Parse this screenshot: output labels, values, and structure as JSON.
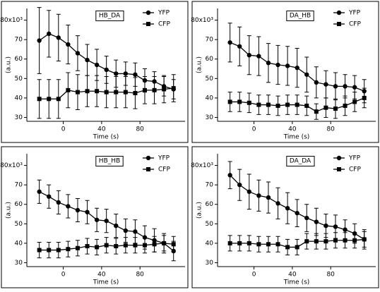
{
  "chart_data": [
    {
      "type": "line",
      "title": "HB_DA",
      "x_label": "Time (s)",
      "y_label": "(a.u.)",
      "x": [
        -25,
        -15,
        -5,
        5,
        15,
        25,
        35,
        45,
        55,
        65,
        75,
        85,
        95,
        105,
        115
      ],
      "xlim": [
        -38,
        127
      ],
      "xticks": [
        0,
        40,
        80
      ],
      "ylim": [
        28,
        86
      ],
      "yticks": [
        30,
        40,
        50,
        60,
        70,
        {
          "value": 80,
          "label": "80x10³"
        }
      ],
      "legend": "top-right",
      "series": [
        {
          "name": "YFP",
          "color": "#000000",
          "marker": "circle",
          "values": [
            69.5,
            73,
            71,
            67.5,
            63,
            59.5,
            57,
            54.5,
            52.5,
            52.5,
            52,
            49,
            48.5,
            46,
            44.5
          ],
          "errors": [
            17,
            12,
            12,
            10,
            9,
            8,
            8,
            7,
            7,
            6,
            6,
            6,
            5,
            5,
            5
          ]
        },
        {
          "name": "CFP",
          "color": "#000000",
          "marker": "square",
          "values": [
            39.5,
            39.5,
            39.5,
            44,
            43,
            43.5,
            43.5,
            43,
            43,
            43,
            42.5,
            44,
            44,
            44.5,
            45
          ],
          "errors": [
            10,
            10,
            10,
            9,
            9,
            8,
            8,
            8,
            8,
            8,
            8,
            7,
            7,
            7,
            7
          ]
        }
      ]
    },
    {
      "type": "line",
      "title": "DA_HB",
      "x_label": "Time (s)",
      "y_label": "(a.u.)",
      "x": [
        -25,
        -15,
        -5,
        5,
        15,
        25,
        35,
        45,
        55,
        65,
        75,
        85,
        95,
        105,
        115
      ],
      "xlim": [
        -38,
        127
      ],
      "xticks": [
        0,
        40,
        80
      ],
      "ylim": [
        28,
        86
      ],
      "yticks": [
        30,
        40,
        50,
        60,
        70,
        {
          "value": 80,
          "label": "80x10³"
        }
      ],
      "legend": "top-right",
      "series": [
        {
          "name": "YFP",
          "color": "#000000",
          "marker": "circle",
          "values": [
            68.5,
            66.5,
            62,
            61.5,
            58,
            57,
            56.5,
            55.5,
            52,
            48,
            47,
            46,
            46,
            45.5,
            43.5
          ],
          "errors": [
            10,
            10,
            10,
            10,
            10,
            10,
            10,
            10,
            9,
            8,
            7,
            7,
            6,
            6,
            6
          ]
        },
        {
          "name": "CFP",
          "color": "#000000",
          "marker": "square",
          "values": [
            38,
            38,
            37.5,
            36.5,
            36.5,
            36,
            36.5,
            36.5,
            36,
            33,
            35,
            34.5,
            36,
            38,
            40
          ],
          "errors": [
            5,
            5,
            5,
            5,
            5,
            5,
            5,
            5,
            5,
            4,
            5,
            5,
            5,
            5,
            5
          ]
        }
      ]
    },
    {
      "type": "line",
      "title": "HB_HB",
      "x_label": "Time (s)",
      "y_label": "(a.u.)",
      "x": [
        -25,
        -15,
        -5,
        5,
        15,
        25,
        35,
        45,
        55,
        65,
        75,
        85,
        95,
        105,
        115
      ],
      "xlim": [
        -38,
        127
      ],
      "xticks": [
        0,
        40,
        80
      ],
      "ylim": [
        28,
        86
      ],
      "yticks": [
        30,
        40,
        50,
        60,
        70,
        {
          "value": 80,
          "label": "80x10³"
        }
      ],
      "legend": "top-right",
      "series": [
        {
          "name": "YFP",
          "color": "#000000",
          "marker": "circle",
          "values": [
            66.5,
            64,
            61,
            59,
            57,
            56,
            52,
            51.5,
            49,
            46.5,
            46,
            43,
            41.5,
            40,
            36
          ],
          "errors": [
            6,
            6,
            6,
            6,
            6,
            6,
            6,
            6,
            6,
            6,
            6,
            6,
            6,
            5,
            5
          ]
        },
        {
          "name": "CFP",
          "color": "#000000",
          "marker": "square",
          "values": [
            36.5,
            36.5,
            36.5,
            37,
            37.5,
            38.5,
            38,
            39,
            38.5,
            39,
            39,
            39,
            39.5,
            40,
            39.5
          ],
          "errors": [
            4,
            4,
            4,
            4,
            4,
            4,
            4,
            4,
            4,
            4,
            4,
            4,
            4,
            4,
            4
          ]
        }
      ]
    },
    {
      "type": "line",
      "title": "DA_DA",
      "x_label": "Time (s)",
      "y_label": "(a.u.)",
      "x": [
        -25,
        -15,
        -5,
        5,
        15,
        25,
        35,
        45,
        55,
        65,
        75,
        85,
        95,
        105,
        115
      ],
      "xlim": [
        -38,
        127
      ],
      "xticks": [
        0,
        40,
        80
      ],
      "ylim": [
        28,
        86
      ],
      "yticks": [
        30,
        40,
        50,
        60,
        70,
        {
          "value": 80,
          "label": "80x10³"
        }
      ],
      "legend": "top-right",
      "series": [
        {
          "name": "YFP",
          "color": "#000000",
          "marker": "circle",
          "values": [
            75,
            70,
            66.5,
            64.5,
            63.5,
            60.5,
            58,
            55.5,
            53,
            51,
            49,
            48.5,
            47,
            45,
            42
          ],
          "errors": [
            7,
            8,
            9,
            8,
            8,
            8,
            8,
            7,
            7,
            7,
            6,
            6,
            5,
            5,
            5
          ]
        },
        {
          "name": "CFP",
          "color": "#000000",
          "marker": "square",
          "values": [
            40,
            40,
            40,
            39.5,
            39.5,
            39.5,
            38,
            38,
            41,
            41,
            41,
            41.5,
            41.5,
            41.5,
            42
          ],
          "errors": [
            4,
            4,
            4,
            4,
            4,
            4,
            4,
            4,
            4,
            4,
            4,
            4,
            4,
            4,
            4
          ]
        }
      ]
    }
  ]
}
